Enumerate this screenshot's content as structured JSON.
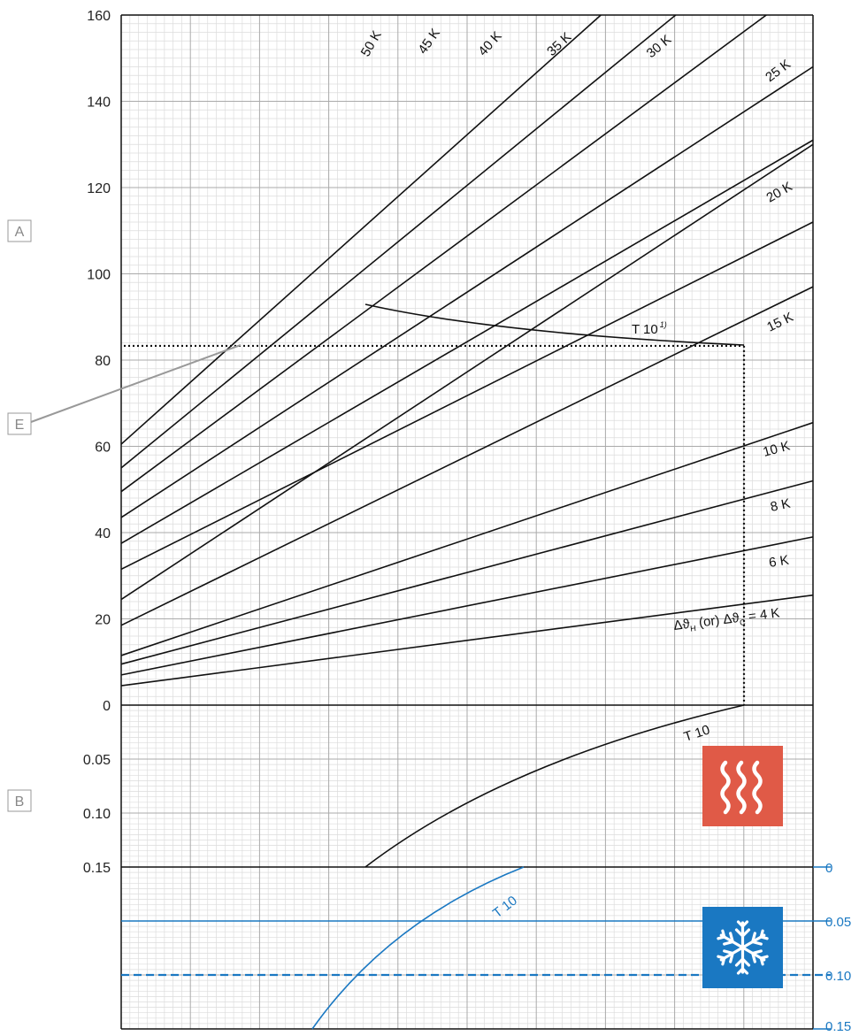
{
  "chart_data": {
    "type": "line",
    "panel_a": {
      "box_label": "A",
      "y_ticks": [
        "0",
        "20",
        "40",
        "60",
        "80",
        "100",
        "120",
        "140",
        "160"
      ],
      "ylim": [
        0,
        160
      ],
      "series": [
        {
          "name": "50 K",
          "start": 60.5,
          "end": 204
        },
        {
          "name": "45 K",
          "start": 55,
          "end": 186
        },
        {
          "name": "40 K",
          "start": 49.5,
          "end": 168
        },
        {
          "name": "35 K",
          "start": 43.5,
          "end": 148
        },
        {
          "name": "30 K",
          "start": 37.5,
          "end": 131
        },
        {
          "name": "25 K",
          "start": 31.5,
          "end": 112
        },
        {
          "name": "20 K",
          "start": 24.5,
          "end": 130
        },
        {
          "name": "15 K",
          "start": 18.5,
          "end": 97
        },
        {
          "name": "10 K",
          "start": 11.5,
          "end": 65.5
        },
        {
          "name": "8 K",
          "start": 9.5,
          "end": 52
        },
        {
          "name": "6 K",
          "start": 7,
          "end": 39
        },
        {
          "name": "4 K",
          "start": 4.5,
          "end": 25.5
        }
      ],
      "curve_label": "T 10",
      "curve_label_sup": "1)",
      "axis_curve_prefix": "Δϑ",
      "axis_curve_sub_h": "H",
      "axis_curve_mid": " (or) Δϑ",
      "axis_curve_sub_c": "C",
      "axis_curve_suffix": " = 4 K",
      "reading_value": 83.3
    },
    "panel_b": {
      "box_label": "B",
      "y_ticks": [
        "0",
        "0.05",
        "0.10",
        "0.15"
      ],
      "ylim": [
        0,
        0.15
      ],
      "curve_label": "T 10",
      "icon": "heating-icon",
      "icon_color": "#e05a47"
    },
    "panel_c": {
      "y_ticks": [
        "0",
        "0.05",
        "0.10",
        "0.15"
      ],
      "ylim": [
        0,
        0.15
      ],
      "curve_label": "T 10",
      "icon": "snowflake-icon",
      "icon_color": "#1a78c2",
      "line_color": "#1a78c2"
    },
    "annotation": {
      "box_label": "E"
    },
    "grid": true
  }
}
